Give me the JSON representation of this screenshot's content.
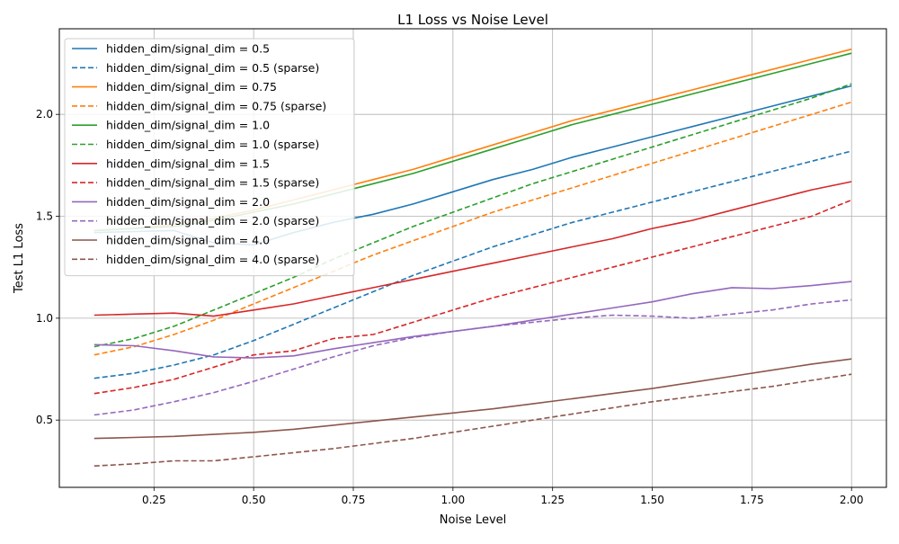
{
  "chart_data": {
    "type": "line",
    "title": "L1 Loss vs Noise Level",
    "xlabel": "Noise Level",
    "ylabel": "Test L1 Loss",
    "xlim": [
      0.0125,
      2.0875
    ],
    "ylim": [
      0.17,
      2.42
    ],
    "xticks": [
      0.25,
      0.5,
      0.75,
      1.0,
      1.25,
      1.5,
      1.75,
      2.0
    ],
    "xtick_labels": [
      "0.25",
      "0.50",
      "0.75",
      "1.00",
      "1.25",
      "1.50",
      "1.75",
      "2.00"
    ],
    "yticks": [
      0.5,
      1.0,
      1.5,
      2.0
    ],
    "ytick_labels": [
      "0.5",
      "1.0",
      "1.5",
      "2.0"
    ],
    "grid": true,
    "legend_position": "top-left",
    "x": [
      0.1,
      0.2,
      0.3,
      0.4,
      0.5,
      0.6,
      0.7,
      0.8,
      0.9,
      1.0,
      1.1,
      1.2,
      1.3,
      1.4,
      1.5,
      1.6,
      1.7,
      1.8,
      1.9,
      2.0
    ],
    "series": [
      {
        "name": "hidden_dim/signal_dim = 0.5",
        "color": "#1f77b4",
        "style": "solid",
        "values": [
          1.42,
          1.425,
          1.43,
          1.37,
          1.36,
          1.42,
          1.47,
          1.51,
          1.56,
          1.62,
          1.68,
          1.73,
          1.79,
          1.84,
          1.89,
          1.94,
          1.99,
          2.04,
          2.09,
          2.14
        ]
      },
      {
        "name": "hidden_dim/signal_dim = 0.5 (sparse)",
        "color": "#1f77b4",
        "style": "dashed",
        "values": [
          0.705,
          0.73,
          0.77,
          0.82,
          0.89,
          0.97,
          1.05,
          1.13,
          1.21,
          1.28,
          1.35,
          1.41,
          1.47,
          1.52,
          1.57,
          1.62,
          1.67,
          1.72,
          1.77,
          1.82
        ]
      },
      {
        "name": "hidden_dim/signal_dim = 0.75",
        "color": "#ff7f0e",
        "style": "solid",
        "values": [
          1.43,
          1.44,
          1.46,
          1.49,
          1.53,
          1.58,
          1.63,
          1.68,
          1.73,
          1.79,
          1.85,
          1.91,
          1.97,
          2.02,
          2.07,
          2.12,
          2.17,
          2.22,
          2.27,
          2.32
        ]
      },
      {
        "name": "hidden_dim/signal_dim = 0.75 (sparse)",
        "color": "#ff7f0e",
        "style": "dashed",
        "values": [
          0.82,
          0.86,
          0.92,
          0.99,
          1.07,
          1.15,
          1.23,
          1.31,
          1.38,
          1.45,
          1.52,
          1.58,
          1.64,
          1.7,
          1.76,
          1.82,
          1.88,
          1.94,
          2.0,
          2.06
        ]
      },
      {
        "name": "hidden_dim/signal_dim = 1.0",
        "color": "#2ca02c",
        "style": "solid",
        "values": [
          1.43,
          1.44,
          1.45,
          1.48,
          1.52,
          1.56,
          1.61,
          1.66,
          1.71,
          1.77,
          1.83,
          1.89,
          1.95,
          2.0,
          2.05,
          2.1,
          2.15,
          2.2,
          2.25,
          2.3
        ]
      },
      {
        "name": "hidden_dim/signal_dim = 1.0 (sparse)",
        "color": "#2ca02c",
        "style": "dashed",
        "values": [
          0.86,
          0.9,
          0.96,
          1.04,
          1.12,
          1.2,
          1.29,
          1.37,
          1.45,
          1.52,
          1.59,
          1.66,
          1.72,
          1.78,
          1.84,
          1.9,
          1.96,
          2.02,
          2.08,
          2.15
        ]
      },
      {
        "name": "hidden_dim/signal_dim = 1.5",
        "color": "#d62728",
        "style": "solid",
        "values": [
          1.015,
          1.02,
          1.025,
          1.01,
          1.04,
          1.07,
          1.11,
          1.15,
          1.19,
          1.23,
          1.27,
          1.31,
          1.35,
          1.39,
          1.44,
          1.48,
          1.53,
          1.58,
          1.63,
          1.67
        ]
      },
      {
        "name": "hidden_dim/signal_dim = 1.5 (sparse)",
        "color": "#d62728",
        "style": "dashed",
        "values": [
          0.63,
          0.66,
          0.7,
          0.76,
          0.82,
          0.84,
          0.9,
          0.92,
          0.98,
          1.04,
          1.1,
          1.15,
          1.2,
          1.25,
          1.3,
          1.35,
          1.4,
          1.45,
          1.5,
          1.58
        ]
      },
      {
        "name": "hidden_dim/signal_dim = 2.0",
        "color": "#9467bd",
        "style": "solid",
        "values": [
          0.87,
          0.865,
          0.84,
          0.81,
          0.805,
          0.815,
          0.85,
          0.88,
          0.91,
          0.935,
          0.96,
          0.99,
          1.02,
          1.05,
          1.08,
          1.12,
          1.15,
          1.145,
          1.16,
          1.18
        ]
      },
      {
        "name": "hidden_dim/signal_dim = 2.0 (sparse)",
        "color": "#9467bd",
        "style": "dashed",
        "values": [
          0.525,
          0.55,
          0.59,
          0.635,
          0.69,
          0.75,
          0.81,
          0.865,
          0.905,
          0.935,
          0.96,
          0.98,
          1.0,
          1.015,
          1.01,
          1.0,
          1.02,
          1.04,
          1.07,
          1.09
        ]
      },
      {
        "name": "hidden_dim/signal_dim = 4.0",
        "color": "#8c564b",
        "style": "solid",
        "values": [
          0.41,
          0.415,
          0.42,
          0.43,
          0.44,
          0.455,
          0.475,
          0.495,
          0.515,
          0.535,
          0.555,
          0.58,
          0.605,
          0.63,
          0.655,
          0.685,
          0.715,
          0.745,
          0.775,
          0.8
        ]
      },
      {
        "name": "hidden_dim/signal_dim = 4.0 (sparse)",
        "color": "#8c564b",
        "style": "dashed",
        "values": [
          0.275,
          0.285,
          0.3,
          0.3,
          0.32,
          0.34,
          0.36,
          0.385,
          0.41,
          0.44,
          0.47,
          0.5,
          0.53,
          0.56,
          0.59,
          0.615,
          0.64,
          0.665,
          0.695,
          0.725
        ]
      }
    ]
  }
}
